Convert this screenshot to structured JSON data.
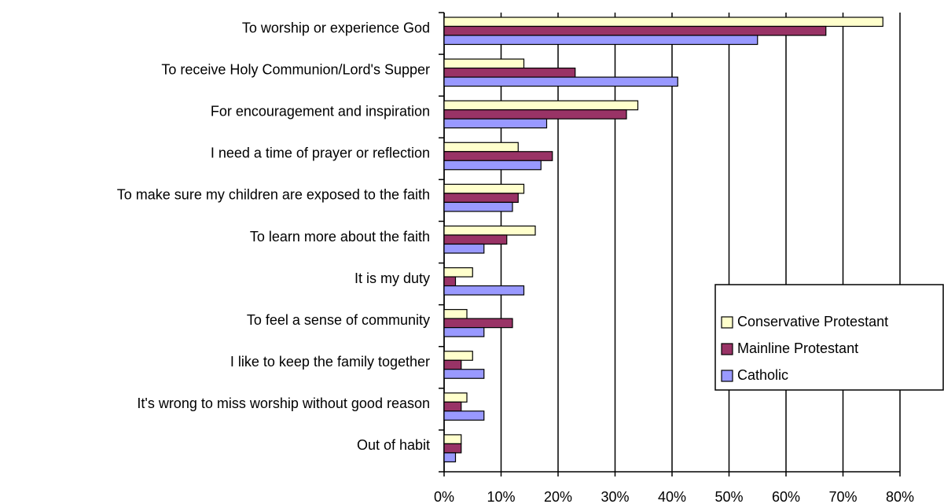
{
  "chart_data": {
    "type": "hbar",
    "categories": [
      "To worship or experience God",
      "To receive Holy Communion/Lord's Supper",
      "For encouragement and inspiration",
      "I need a time of prayer or reflection",
      "To make sure my children are exposed to the faith",
      "To learn more about the faith",
      "It is my duty",
      "To feel a sense of community",
      "I like to keep the family together",
      "It's wrong to miss worship without good reason",
      "Out of habit"
    ],
    "series": [
      {
        "name": "Conservative Protestant",
        "color": "#ffffcc",
        "values": [
          77,
          14,
          34,
          13,
          14,
          16,
          5,
          4,
          5,
          4,
          3
        ]
      },
      {
        "name": "Mainline Protestant",
        "color": "#993366",
        "values": [
          67,
          23,
          32,
          19,
          13,
          11,
          2,
          12,
          3,
          3,
          3
        ]
      },
      {
        "name": "Catholic",
        "color": "#9999ff",
        "values": [
          55,
          41,
          18,
          17,
          12,
          7,
          14,
          7,
          7,
          7,
          2
        ]
      }
    ],
    "xlim": [
      0,
      80
    ],
    "xticks": [
      {
        "value": 0,
        "label": "0%"
      },
      {
        "value": 10,
        "label": "10%"
      },
      {
        "value": 20,
        "label": "20%"
      },
      {
        "value": 30,
        "label": "30%"
      },
      {
        "value": 40,
        "label": "40%"
      },
      {
        "value": 50,
        "label": "50%"
      },
      {
        "value": 60,
        "label": "60%"
      },
      {
        "value": 70,
        "label": "70%"
      },
      {
        "value": 80,
        "label": "80%"
      }
    ],
    "grid": true,
    "legend": "right"
  }
}
